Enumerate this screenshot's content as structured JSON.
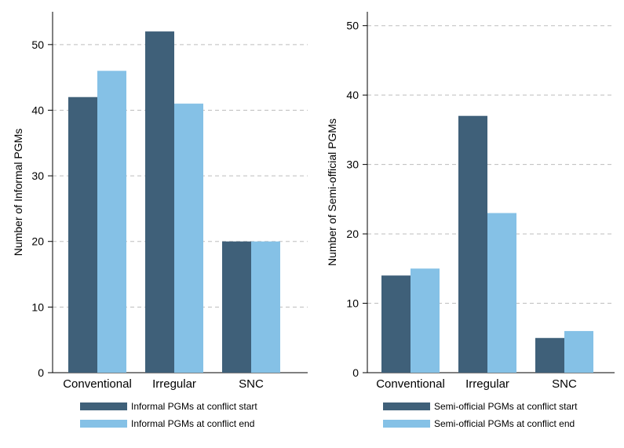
{
  "chart_data": [
    {
      "type": "bar",
      "categories": [
        "Conventional",
        "Irregular",
        "SNC"
      ],
      "series": [
        {
          "name": "Informal PGMs at conflict start",
          "values": [
            42,
            52,
            20
          ]
        },
        {
          "name": "Informal PGMs at conflict end",
          "values": [
            46,
            41,
            20
          ]
        }
      ],
      "ylabel": "Number of Informal PGMs",
      "ylim": [
        0,
        55
      ],
      "yticks": [
        0,
        10,
        20,
        30,
        40,
        50
      ],
      "grid": true,
      "legend_position": "bottom"
    },
    {
      "type": "bar",
      "categories": [
        "Conventional",
        "Irregular",
        "SNC"
      ],
      "series": [
        {
          "name": "Semi-official PGMs at conflict start",
          "values": [
            14,
            37,
            5
          ]
        },
        {
          "name": "Semi-official PGMs at conflict end",
          "values": [
            15,
            23,
            6
          ]
        }
      ],
      "ylabel": "Number of Semi-official PGMs",
      "ylim": [
        0,
        52
      ],
      "yticks": [
        0,
        10,
        20,
        30,
        40,
        50
      ],
      "grid": true,
      "legend_position": "bottom"
    }
  ],
  "colors": {
    "start": "#3f6079",
    "end": "#85c1e6",
    "grid": "#bdbdbd"
  }
}
